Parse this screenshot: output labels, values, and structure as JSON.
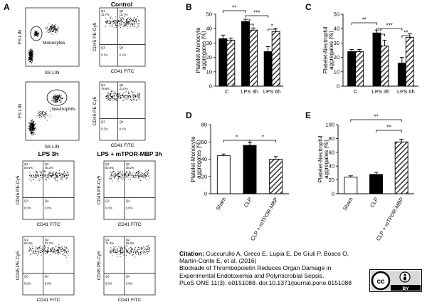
{
  "figure": {
    "panel_a": {
      "letter": "A",
      "titles": {
        "control": "Control",
        "lps": "LPS 3h",
        "mptor": "LPS + mTPOR-MBP 3h"
      },
      "axis": {
        "fs": "FS LIN",
        "ss": "SS LIN",
        "cd45": "CD45 PE-Cy5",
        "cd41": "CD41 FITC"
      },
      "gates": {
        "mono": "Monocytes",
        "neut": "Neutrophils"
      },
      "quads": {
        "c1": [
          "Q1",
          "Q2",
          "Q3",
          "Q4",
          "11.7%",
          "15.7%",
          "0.1%",
          "0.1%"
        ],
        "c2": [
          "Q1",
          "Q2",
          "Q3",
          "Q4",
          "78.6%",
          "21.0%",
          "0.3%",
          "0.1%"
        ],
        "l1": [
          "Q1",
          "Q2",
          "Q3",
          "Q4",
          "50.6%",
          "45.2%",
          "0.0%",
          "0.0%"
        ],
        "m1": [
          "Q1",
          "Q2",
          "Q3",
          "Q4",
          "62.8%",
          "38.2%",
          "0.0%",
          "0.0%"
        ],
        "l2": [
          "Q1",
          "Q2",
          "Q3",
          "Q4",
          "62.2%",
          "37.7%",
          "0.0%",
          "0.0%"
        ],
        "m2": [
          "Q1",
          "Q2",
          "Q3",
          "Q4",
          "71.2%",
          "28.6%",
          "0.0%",
          "0.0%"
        ]
      }
    }
  },
  "chart_data": [
    {
      "panel": "B",
      "type": "bar",
      "categories": [
        "C",
        "LPS 3h",
        "LPS 6h"
      ],
      "ylabel": "Platelet-Monocyte aggregates (%)",
      "ylim": [
        0,
        50
      ],
      "yticks": [
        0,
        10,
        20,
        30,
        40,
        50
      ],
      "series": [
        {
          "values": [
            33,
            45,
            24
          ],
          "errors": [
            2.5,
            1.5,
            3.5
          ],
          "fill": "#000000"
        },
        {
          "values": [
            32,
            39,
            38
          ],
          "errors": [
            1.5,
            1.5,
            2.0
          ],
          "fill": "hatch"
        }
      ],
      "significance": [
        {
          "label": "**",
          "from": 0,
          "to": 2
        },
        {
          "label": "***",
          "from": 2,
          "to": 4
        },
        {
          "label": "*",
          "from": 2,
          "to": 3
        },
        {
          "label": "*",
          "from": 4,
          "to": 5
        }
      ]
    },
    {
      "panel": "C",
      "type": "bar",
      "categories": [
        "C",
        "LPS 3h",
        "LPS 6h"
      ],
      "ylabel": "Platelet-Neutrophil aggregates (%)",
      "ylim": [
        0,
        50
      ],
      "yticks": [
        0,
        10,
        20,
        30,
        40,
        50
      ],
      "series": [
        {
          "values": [
            24,
            37,
            16
          ],
          "errors": [
            1.5,
            2.0,
            4.0
          ],
          "fill": "#000000"
        },
        {
          "values": [
            24,
            28,
            34
          ],
          "errors": [
            1.5,
            4.0,
            2.5
          ],
          "fill": "hatch"
        }
      ],
      "significance": [
        {
          "label": "**",
          "from": 0,
          "to": 2
        },
        {
          "label": "***",
          "from": 2,
          "to": 4
        },
        {
          "label": "*",
          "from": 2,
          "to": 3
        },
        {
          "label": "**",
          "from": 4,
          "to": 5
        }
      ]
    },
    {
      "panel": "D",
      "type": "bar",
      "categories": [
        "Sham",
        "CLP",
        "CLP + mTPOR-MBP"
      ],
      "ylabel": "Platelet-Monocyte aggregates (%)",
      "ylim": [
        0,
        80
      ],
      "yticks": [
        0,
        20,
        40,
        60,
        80
      ],
      "series": [
        {
          "values": [
            44,
            56,
            40
          ],
          "errors": [
            2,
            3,
            3
          ],
          "fills": [
            "#ffffff",
            "#000000",
            "hatch"
          ]
        }
      ],
      "significance": [
        {
          "label": "*",
          "from": 0,
          "to": 1
        },
        {
          "label": "*",
          "from": 1,
          "to": 2
        }
      ]
    },
    {
      "panel": "E",
      "type": "bar",
      "categories": [
        "Sham",
        "CLP",
        "CLP + mTPOR-MBP"
      ],
      "ylabel": "Platelet-Neutrophil aggregates (%)",
      "ylim": [
        0,
        100
      ],
      "yticks": [
        0,
        20,
        40,
        60,
        80,
        100
      ],
      "series": [
        {
          "values": [
            24,
            28,
            75
          ],
          "errors": [
            2,
            3,
            4
          ],
          "fills": [
            "#ffffff",
            "#000000",
            "hatch"
          ]
        }
      ],
      "significance": [
        {
          "label": "**",
          "from": 0,
          "to": 2
        },
        {
          "label": "**",
          "from": 1,
          "to": 2
        }
      ]
    }
  ],
  "citation": {
    "label": "Citation:",
    "authors": "Cuccurullo A, Greco E, Lupia E, De Giuli P, Bosco O, Martin-Conte E, et al. (2016)",
    "title": "Blockade of Thrombopoietin Reduces Organ Damage in Experimental Endotoxemia and Polymicrobial Sepsis.",
    "journal": "PLoS ONE 11(3): e0151088. doi:10.1371/journal.pone.0151088"
  },
  "license": {
    "cc": "cc",
    "by": "BY"
  }
}
